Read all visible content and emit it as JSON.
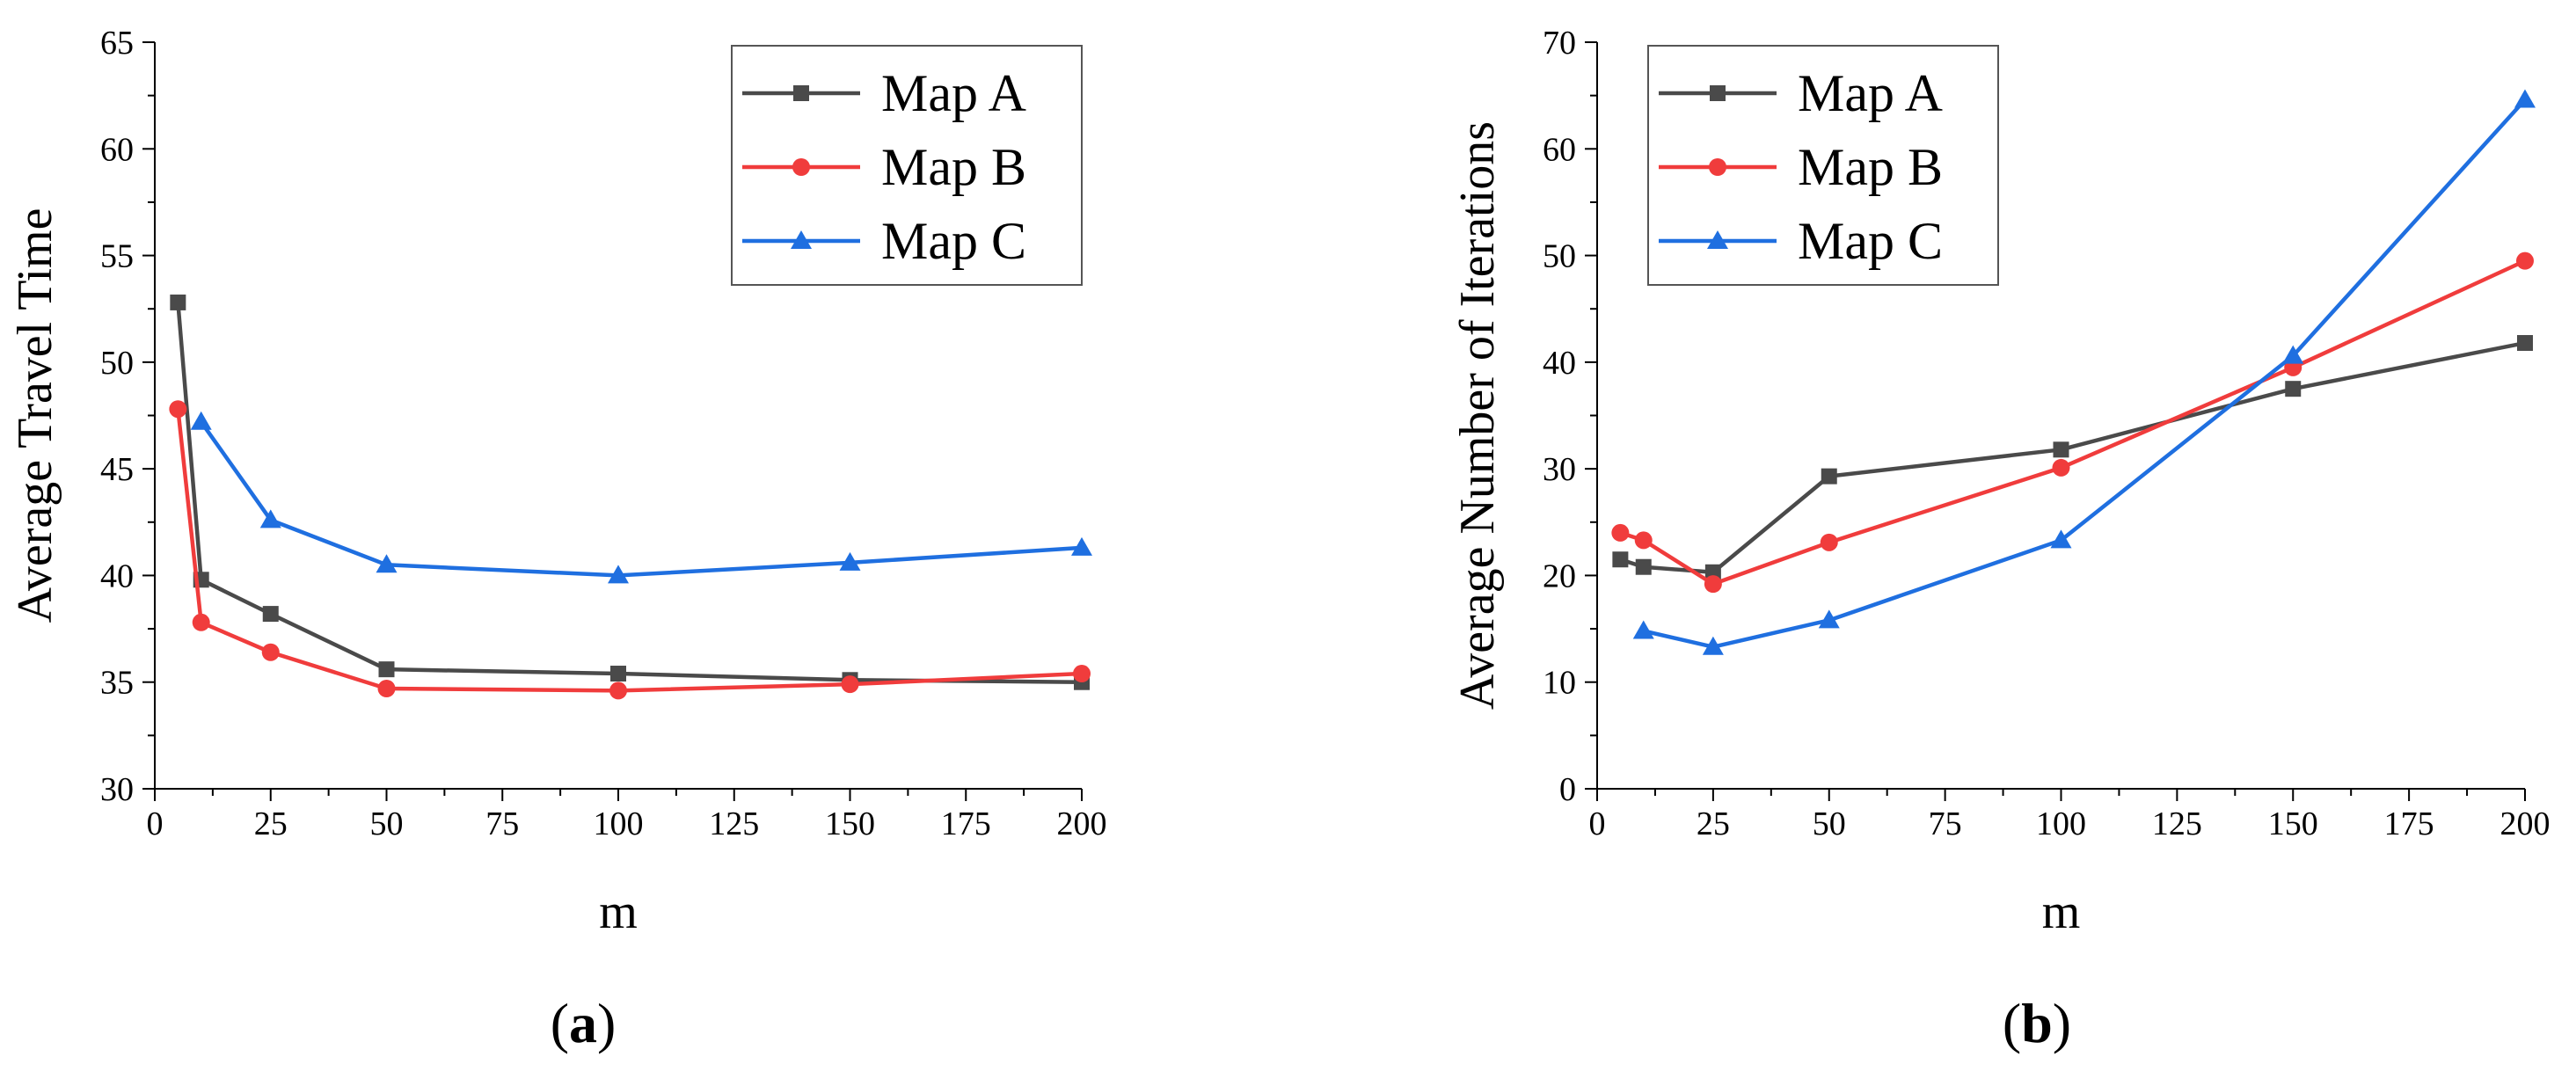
{
  "chart_data": [
    {
      "type": "line",
      "panel_label": "(a)",
      "xlabel": "m",
      "ylabel": "Average Travel Time",
      "xlim": [
        0,
        200
      ],
      "ylim": [
        30,
        65
      ],
      "xticks": [
        0,
        25,
        50,
        75,
        100,
        125,
        150,
        175,
        200
      ],
      "yticks": [
        30,
        35,
        40,
        45,
        50,
        55,
        60,
        65
      ],
      "legend_position": "top-right",
      "series": [
        {
          "name": "Map A",
          "color": "#4a4a4a",
          "marker": "square",
          "x": [
            5,
            10,
            25,
            50,
            100,
            150,
            200
          ],
          "y": [
            52.8,
            39.8,
            38.2,
            35.6,
            35.4,
            35.1,
            35.0
          ]
        },
        {
          "name": "Map B",
          "color": "#f03c3c",
          "marker": "circle",
          "x": [
            5,
            10,
            25,
            50,
            100,
            150,
            200
          ],
          "y": [
            47.8,
            37.8,
            36.4,
            34.7,
            34.6,
            34.9,
            35.4
          ]
        },
        {
          "name": "Map C",
          "color": "#1f6fe0",
          "marker": "triangle",
          "x": [
            10,
            25,
            50,
            100,
            150,
            200
          ],
          "y": [
            47.2,
            42.6,
            40.5,
            40.0,
            40.6,
            41.3
          ]
        }
      ]
    },
    {
      "type": "line",
      "panel_label": "(b)",
      "xlabel": "m",
      "ylabel": "Average Number of Iterations",
      "xlim": [
        0,
        200
      ],
      "ylim": [
        0,
        70
      ],
      "xticks": [
        0,
        25,
        50,
        75,
        100,
        125,
        150,
        175,
        200
      ],
      "yticks": [
        0,
        10,
        20,
        30,
        40,
        50,
        60,
        70
      ],
      "legend_position": "top-left",
      "series": [
        {
          "name": "Map A",
          "color": "#4a4a4a",
          "marker": "square",
          "x": [
            5,
            10,
            25,
            50,
            100,
            150,
            200
          ],
          "y": [
            21.5,
            20.8,
            20.3,
            29.3,
            31.8,
            37.5,
            41.8
          ]
        },
        {
          "name": "Map B",
          "color": "#f03c3c",
          "marker": "circle",
          "x": [
            5,
            10,
            25,
            50,
            100,
            150,
            200
          ],
          "y": [
            24.0,
            23.3,
            19.2,
            23.1,
            30.1,
            39.5,
            49.5
          ]
        },
        {
          "name": "Map C",
          "color": "#1f6fe0",
          "marker": "triangle",
          "x": [
            10,
            25,
            50,
            100,
            150,
            200
          ],
          "y": [
            14.8,
            13.3,
            15.8,
            23.3,
            40.6,
            64.6
          ]
        }
      ]
    }
  ]
}
